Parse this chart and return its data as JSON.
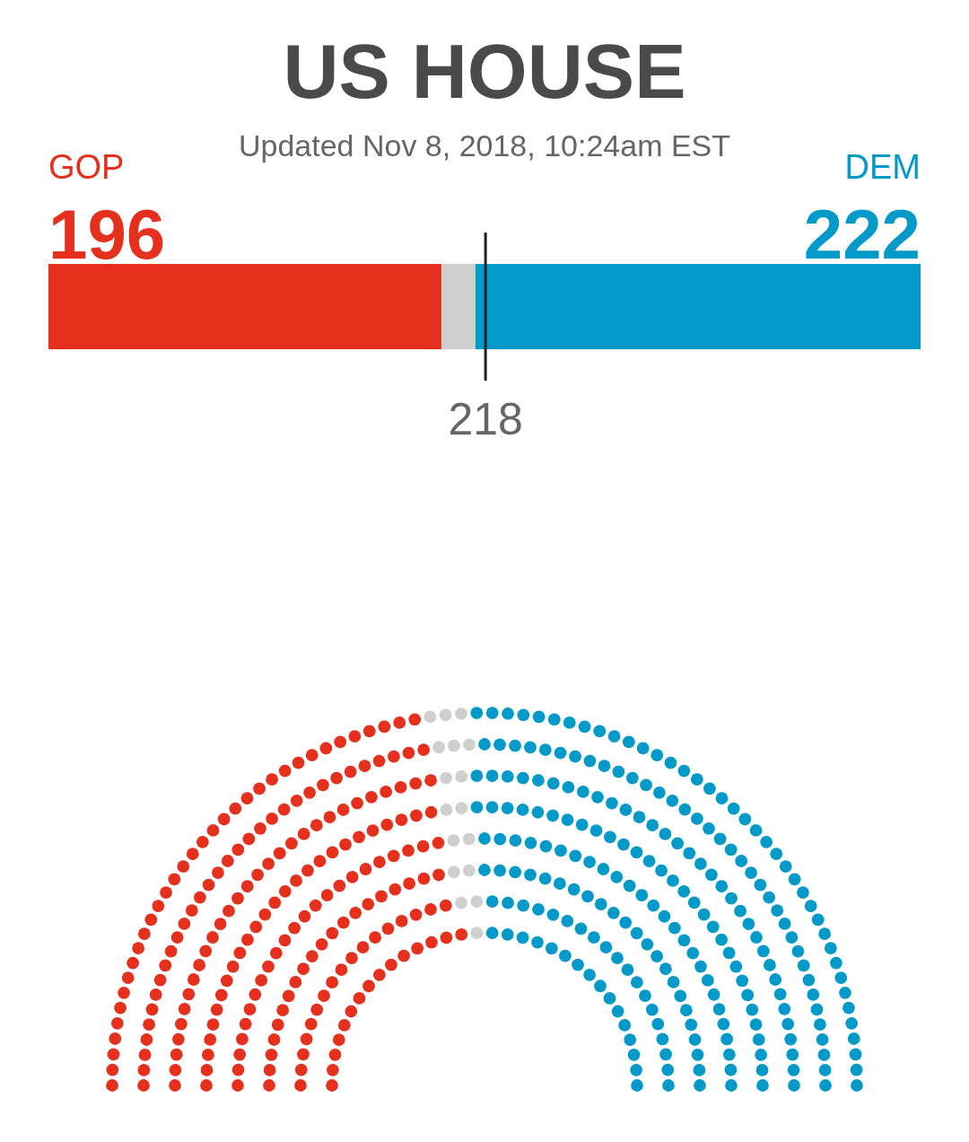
{
  "chart_data": {
    "type": "bar",
    "title": "US HOUSE",
    "subtitle": "Updated Nov 8, 2018, 10:24am EST",
    "orientation": "horizontal",
    "stacked": true,
    "categories": [
      null
    ],
    "tick_labels": false,
    "series": [
      {
        "name": "GOP",
        "color": "#e5301d",
        "values": [
          196
        ],
        "value_labels": [
          "196"
        ]
      },
      {
        "color": "#cfcfcf",
        "values": [
          17
        ]
      },
      {
        "name": "DEM",
        "color": "#0399c9",
        "values": [
          222
        ],
        "value_labels": [
          "222"
        ]
      }
    ],
    "ref_lines": [
      {
        "axis": "x",
        "value": 218,
        "label": "218",
        "color": "#222222"
      }
    ]
  }
}
